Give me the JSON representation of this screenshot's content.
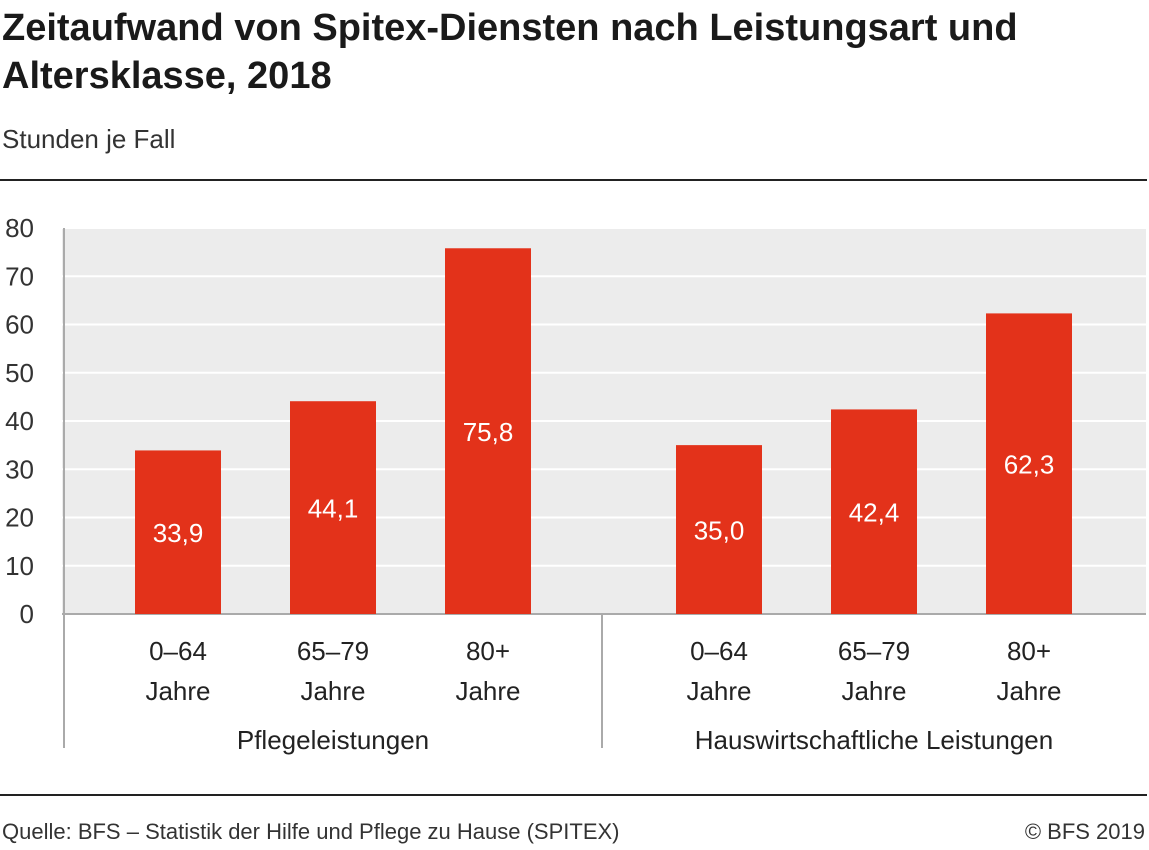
{
  "header": {
    "title": "Zeitaufwand von Spitex-Diensten nach Leistungsart und Altersklasse, 2018",
    "subtitle": "Stunden je Fall"
  },
  "footer": {
    "source": "Quelle: BFS – Statistik der Hilfe und Pflege zu Hause (SPITEX)",
    "copyright": "© BFS 2019"
  },
  "colors": {
    "bar": "#e3321a",
    "plot_background": "#ececec",
    "grid": "#ffffff",
    "axis_lines": "#aaaaaa",
    "value_label": "#ffffff"
  },
  "chart_data": {
    "type": "bar",
    "title": "Zeitaufwand von Spitex-Diensten nach Leistungsart und Altersklasse, 2018",
    "subtitle": "Stunden je Fall",
    "ylim": [
      0,
      80
    ],
    "yticks": [
      0,
      10,
      20,
      30,
      40,
      50,
      60,
      70,
      80
    ],
    "grid": true,
    "groups": [
      {
        "name": "Pflegeleistungen",
        "categories": [
          [
            "0–64",
            "Jahre"
          ],
          [
            "65–79",
            "Jahre"
          ],
          [
            "80+",
            "Jahre"
          ]
        ],
        "values": [
          33.9,
          44.1,
          75.8
        ],
        "labels": [
          "33,9",
          "44,1",
          "75,8"
        ]
      },
      {
        "name": "Hauswirtschaftliche Leistungen",
        "categories": [
          [
            "0–64",
            "Jahre"
          ],
          [
            "65–79",
            "Jahre"
          ],
          [
            "80+",
            "Jahre"
          ]
        ],
        "values": [
          35.0,
          42.4,
          62.3
        ],
        "labels": [
          "35,0",
          "42,4",
          "62,3"
        ]
      }
    ]
  }
}
